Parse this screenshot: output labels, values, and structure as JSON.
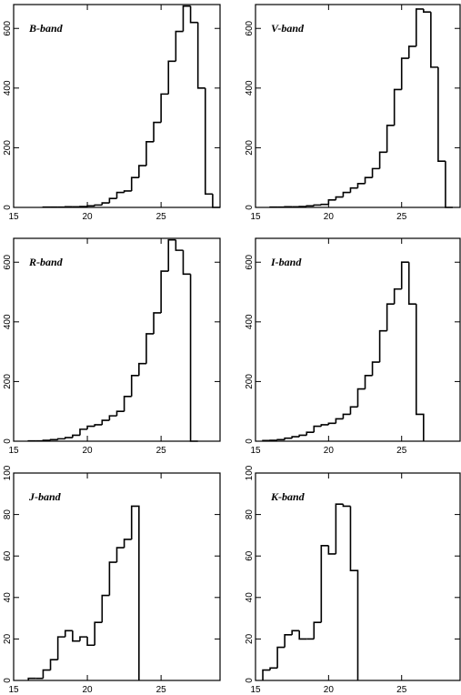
{
  "chart_data": [
    {
      "type": "histogram",
      "title": "B-band",
      "bins": [
        17,
        17.5,
        18,
        18.5,
        19,
        19.5,
        20,
        20.5,
        21,
        21.5,
        22,
        22.5,
        23,
        23.5,
        24,
        24.5,
        25,
        25.5,
        26,
        26.5,
        27,
        27.5,
        28,
        28.5,
        29
      ],
      "values": [
        1,
        1,
        1,
        2,
        2,
        3,
        5,
        8,
        15,
        30,
        50,
        55,
        100,
        140,
        220,
        285,
        380,
        490,
        590,
        675,
        620,
        400,
        45,
        0
      ],
      "color": "#000000",
      "xlim": [
        15,
        29
      ],
      "ylim": [
        0,
        680
      ],
      "xticks": [
        15,
        20,
        25
      ],
      "yticks": [
        0,
        200,
        400,
        600
      ]
    },
    {
      "type": "histogram",
      "title": "V-band",
      "bins": [
        16,
        16.5,
        17,
        17.5,
        18,
        18.5,
        19,
        19.5,
        20,
        20.5,
        21,
        21.5,
        22,
        22.5,
        23,
        23.5,
        24,
        24.5,
        25,
        25.5,
        26,
        26.5,
        27,
        27.5,
        28,
        28.5
      ],
      "values": [
        1,
        1,
        2,
        2,
        3,
        5,
        8,
        10,
        25,
        35,
        50,
        65,
        80,
        100,
        130,
        185,
        275,
        395,
        500,
        540,
        665,
        655,
        470,
        155,
        0
      ],
      "color": "#000000",
      "xlim": [
        15,
        29
      ],
      "ylim": [
        0,
        680
      ],
      "xticks": [
        15,
        20,
        25
      ],
      "yticks": [
        0,
        200,
        400,
        600
      ]
    },
    {
      "type": "histogram",
      "title": "R-band",
      "bins": [
        16,
        16.5,
        17,
        17.5,
        18,
        18.5,
        19,
        19.5,
        20,
        20.5,
        21,
        21.5,
        22,
        22.5,
        23,
        23.5,
        24,
        24.5,
        25,
        25.5,
        26,
        26.5,
        27,
        27.5
      ],
      "values": [
        1,
        1,
        3,
        5,
        8,
        12,
        20,
        40,
        50,
        55,
        70,
        85,
        100,
        150,
        220,
        260,
        360,
        430,
        570,
        675,
        640,
        560,
        0
      ],
      "color": "#000000",
      "xlim": [
        15,
        29
      ],
      "ylim": [
        0,
        680
      ],
      "xticks": [
        15,
        20,
        25
      ],
      "yticks": [
        0,
        200,
        400,
        600
      ]
    },
    {
      "type": "histogram",
      "title": "I-band",
      "bins": [
        15.5,
        16,
        16.5,
        17,
        17.5,
        18,
        18.5,
        19,
        19.5,
        20,
        20.5,
        21,
        21.5,
        22,
        22.5,
        23,
        23.5,
        24,
        24.5,
        25,
        25.5,
        26,
        26.5
      ],
      "values": [
        2,
        3,
        5,
        10,
        15,
        20,
        30,
        50,
        55,
        60,
        75,
        90,
        115,
        175,
        220,
        265,
        370,
        460,
        510,
        600,
        460,
        90
      ],
      "color": "#000000",
      "xlim": [
        15,
        29
      ],
      "ylim": [
        0,
        680
      ],
      "xticks": [
        15,
        20,
        25
      ],
      "yticks": [
        0,
        200,
        400,
        600
      ]
    },
    {
      "type": "histogram",
      "title": "J-band",
      "bins": [
        16,
        16.5,
        17,
        17.5,
        18,
        18.5,
        19,
        19.5,
        20,
        20.5,
        21,
        21.5,
        22,
        22.5,
        23,
        23.5
      ],
      "values": [
        1,
        1,
        5,
        10,
        21,
        24,
        19,
        21,
        17,
        28,
        41,
        57,
        64,
        68,
        84
      ],
      "color": "#000000",
      "xlim": [
        15,
        29
      ],
      "ylim": [
        0,
        100
      ],
      "xticks": [
        15,
        20,
        25
      ],
      "yticks": [
        0,
        20,
        40,
        60,
        80,
        100
      ]
    },
    {
      "type": "histogram",
      "title": "K-band",
      "bins": [
        15.5,
        16,
        16.5,
        17,
        17.5,
        18,
        18.5,
        19,
        19.5,
        20,
        20.5,
        21,
        21.5,
        22
      ],
      "values": [
        5,
        6,
        16,
        22,
        24,
        20,
        20,
        28,
        65,
        61,
        85,
        84,
        53
      ],
      "color": "#000000",
      "xlim": [
        15,
        29
      ],
      "ylim": [
        0,
        100
      ],
      "xticks": [
        15,
        20,
        25
      ],
      "yticks": [
        0,
        20,
        40,
        60,
        80,
        100
      ]
    }
  ]
}
